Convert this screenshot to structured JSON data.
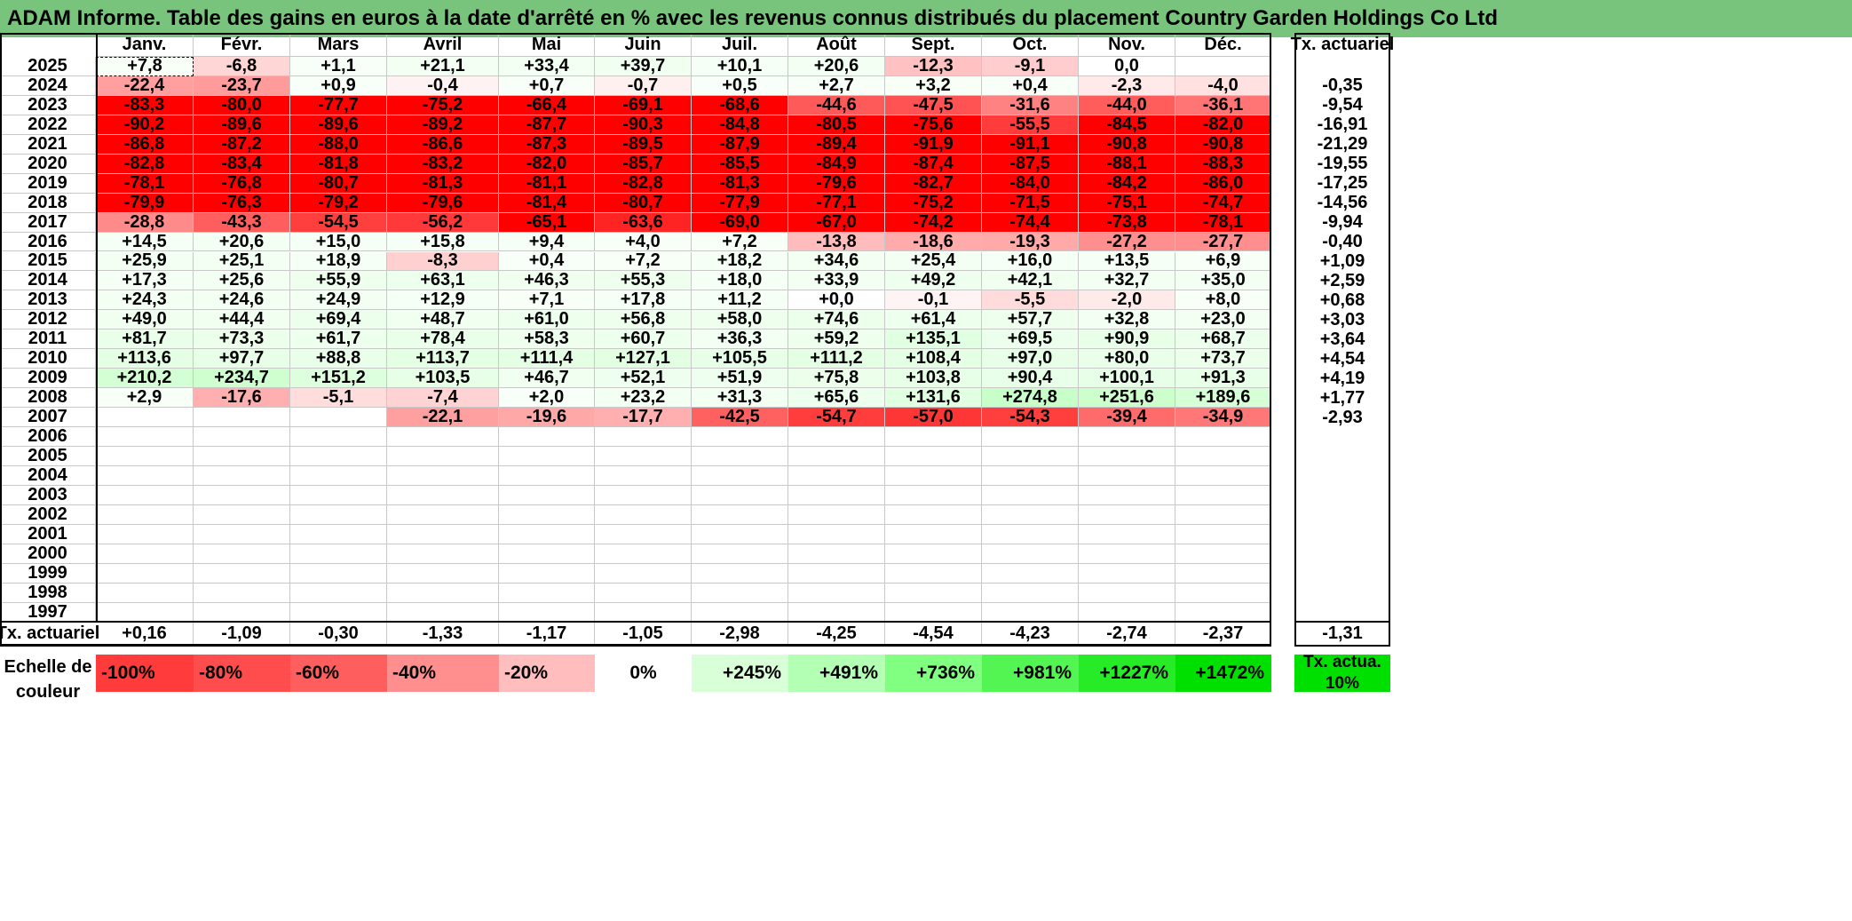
{
  "title": "ADAM Informe. Table des gains en euros à la date d'arrêté en % avec les revenus connus distribués du placement Country Garden Holdings Co Ltd",
  "months": [
    "Janv.",
    "Févr.",
    "Mars",
    "Avril",
    "Mai",
    "Juin",
    "Juil.",
    "Août",
    "Sept.",
    "Oct.",
    "Nov.",
    "Déc."
  ],
  "annual_header": "Tx. actuariel",
  "rows": [
    {
      "year": "2025",
      "values": [
        "+7,8",
        "-6,8",
        "+1,1",
        "+21,1",
        "+33,4",
        "+39,7",
        "+10,1",
        "+20,6",
        "-12,3",
        "-9,1",
        "0,0",
        ""
      ],
      "annual": ""
    },
    {
      "year": "2024",
      "values": [
        "-22,4",
        "-23,7",
        "+0,9",
        "-0,4",
        "+0,7",
        "-0,7",
        "+0,5",
        "+2,7",
        "+3,2",
        "+0,4",
        "-2,3",
        "-4,0"
      ],
      "annual": "-0,35"
    },
    {
      "year": "2023",
      "values": [
        "-83,3",
        "-80,0",
        "-77,7",
        "-75,2",
        "-66,4",
        "-69,1",
        "-68,6",
        "-44,6",
        "-47,5",
        "-31,6",
        "-44,0",
        "-36,1"
      ],
      "annual": "-9,54"
    },
    {
      "year": "2022",
      "values": [
        "-90,2",
        "-89,6",
        "-89,6",
        "-89,2",
        "-87,7",
        "-90,3",
        "-84,8",
        "-80,5",
        "-75,6",
        "-55,5",
        "-84,5",
        "-82,0"
      ],
      "annual": "-16,91"
    },
    {
      "year": "2021",
      "values": [
        "-86,8",
        "-87,2",
        "-88,0",
        "-86,6",
        "-87,3",
        "-89,5",
        "-87,9",
        "-89,4",
        "-91,9",
        "-91,1",
        "-90,8",
        "-90,8"
      ],
      "annual": "-21,29"
    },
    {
      "year": "2020",
      "values": [
        "-82,8",
        "-83,4",
        "-81,8",
        "-83,2",
        "-82,0",
        "-85,7",
        "-85,5",
        "-84,9",
        "-87,4",
        "-87,5",
        "-88,1",
        "-88,3"
      ],
      "annual": "-19,55"
    },
    {
      "year": "2019",
      "values": [
        "-78,1",
        "-76,8",
        "-80,7",
        "-81,3",
        "-81,1",
        "-82,8",
        "-81,3",
        "-79,6",
        "-82,7",
        "-84,0",
        "-84,2",
        "-86,0"
      ],
      "annual": "-17,25"
    },
    {
      "year": "2018",
      "values": [
        "-79,9",
        "-76,3",
        "-79,2",
        "-79,6",
        "-81,4",
        "-80,7",
        "-77,9",
        "-77,1",
        "-75,2",
        "-71,5",
        "-75,1",
        "-74,7"
      ],
      "annual": "-14,56"
    },
    {
      "year": "2017",
      "values": [
        "-28,8",
        "-43,3",
        "-54,5",
        "-56,2",
        "-65,1",
        "-63,6",
        "-69,0",
        "-67,0",
        "-74,2",
        "-74,4",
        "-73,8",
        "-78,1"
      ],
      "annual": "-9,94"
    },
    {
      "year": "2016",
      "values": [
        "+14,5",
        "+20,6",
        "+15,0",
        "+15,8",
        "+9,4",
        "+4,0",
        "+7,2",
        "-13,8",
        "-18,6",
        "-19,3",
        "-27,2",
        "-27,7"
      ],
      "annual": "-0,40"
    },
    {
      "year": "2015",
      "values": [
        "+25,9",
        "+25,1",
        "+18,9",
        "-8,3",
        "+0,4",
        "+7,2",
        "+18,2",
        "+34,6",
        "+25,4",
        "+16,0",
        "+13,5",
        "+6,9"
      ],
      "annual": "+1,09"
    },
    {
      "year": "2014",
      "values": [
        "+17,3",
        "+25,6",
        "+55,9",
        "+63,1",
        "+46,3",
        "+55,3",
        "+18,0",
        "+33,9",
        "+49,2",
        "+42,1",
        "+32,7",
        "+35,0"
      ],
      "annual": "+2,59"
    },
    {
      "year": "2013",
      "values": [
        "+24,3",
        "+24,6",
        "+24,9",
        "+12,9",
        "+7,1",
        "+17,8",
        "+11,2",
        "+0,0",
        "-0,1",
        "-5,5",
        "-2,0",
        "+8,0"
      ],
      "annual": "+0,68"
    },
    {
      "year": "2012",
      "values": [
        "+49,0",
        "+44,4",
        "+69,4",
        "+48,7",
        "+61,0",
        "+56,8",
        "+58,0",
        "+74,6",
        "+61,4",
        "+57,7",
        "+32,8",
        "+23,0"
      ],
      "annual": "+3,03"
    },
    {
      "year": "2011",
      "values": [
        "+81,7",
        "+73,3",
        "+61,7",
        "+78,4",
        "+58,3",
        "+60,7",
        "+36,3",
        "+59,2",
        "+135,1",
        "+69,5",
        "+90,9",
        "+68,7"
      ],
      "annual": "+3,64"
    },
    {
      "year": "2010",
      "values": [
        "+113,6",
        "+97,7",
        "+88,8",
        "+113,7",
        "+111,4",
        "+127,1",
        "+105,5",
        "+111,2",
        "+108,4",
        "+97,0",
        "+80,0",
        "+73,7"
      ],
      "annual": "+4,54"
    },
    {
      "year": "2009",
      "values": [
        "+210,2",
        "+234,7",
        "+151,2",
        "+103,5",
        "+46,7",
        "+52,1",
        "+51,9",
        "+75,8",
        "+103,8",
        "+90,4",
        "+100,1",
        "+91,3"
      ],
      "annual": "+4,19"
    },
    {
      "year": "2008",
      "values": [
        "+2,9",
        "-17,6",
        "-5,1",
        "-7,4",
        "+2,0",
        "+23,2",
        "+31,3",
        "+65,6",
        "+131,6",
        "+274,8",
        "+251,6",
        "+189,6"
      ],
      "annual": "+1,77"
    },
    {
      "year": "2007",
      "values": [
        "",
        "",
        "",
        "-22,1",
        "-19,6",
        "-17,7",
        "-42,5",
        "-54,7",
        "-57,0",
        "-54,3",
        "-39,4",
        "-34,9"
      ],
      "annual": "-2,93"
    },
    {
      "year": "2006",
      "values": [
        "",
        "",
        "",
        "",
        "",
        "",
        "",
        "",
        "",
        "",
        "",
        ""
      ],
      "annual": ""
    },
    {
      "year": "2005",
      "values": [
        "",
        "",
        "",
        "",
        "",
        "",
        "",
        "",
        "",
        "",
        "",
        ""
      ],
      "annual": ""
    },
    {
      "year": "2004",
      "values": [
        "",
        "",
        "",
        "",
        "",
        "",
        "",
        "",
        "",
        "",
        "",
        ""
      ],
      "annual": ""
    },
    {
      "year": "2003",
      "values": [
        "",
        "",
        "",
        "",
        "",
        "",
        "",
        "",
        "",
        "",
        "",
        ""
      ],
      "annual": ""
    },
    {
      "year": "2002",
      "values": [
        "",
        "",
        "",
        "",
        "",
        "",
        "",
        "",
        "",
        "",
        "",
        ""
      ],
      "annual": ""
    },
    {
      "year": "2001",
      "values": [
        "",
        "",
        "",
        "",
        "",
        "",
        "",
        "",
        "",
        "",
        "",
        ""
      ],
      "annual": ""
    },
    {
      "year": "2000",
      "values": [
        "",
        "",
        "",
        "",
        "",
        "",
        "",
        "",
        "",
        "",
        "",
        ""
      ],
      "annual": ""
    },
    {
      "year": "1999",
      "values": [
        "",
        "",
        "",
        "",
        "",
        "",
        "",
        "",
        "",
        "",
        "",
        ""
      ],
      "annual": ""
    },
    {
      "year": "1998",
      "values": [
        "",
        "",
        "",
        "",
        "",
        "",
        "",
        "",
        "",
        "",
        "",
        ""
      ],
      "annual": ""
    },
    {
      "year": "1997",
      "values": [
        "",
        "",
        "",
        "",
        "",
        "",
        "",
        "",
        "",
        "",
        "",
        ""
      ],
      "annual": ""
    }
  ],
  "summary": {
    "label": "Tx. actuariel",
    "values": [
      "+0,16",
      "-1,09",
      "-0,30",
      "-1,33",
      "-1,17",
      "-1,05",
      "-2,98",
      "-4,25",
      "-4,54",
      "-4,23",
      "-2,74",
      "-2,37"
    ],
    "annual": "-1,31"
  },
  "legend": {
    "label": "Echelle de couleur",
    "items": [
      {
        "text": "-100%",
        "color": "#ff3b3b"
      },
      {
        "text": "-80%",
        "color": "#ff4d4d"
      },
      {
        "text": "-60%",
        "color": "#ff5e5e"
      },
      {
        "text": "-40%",
        "color": "#ff8f8f"
      },
      {
        "text": "-20%",
        "color": "#ffbdbd"
      },
      {
        "text": "0%",
        "color": "#ffffff"
      },
      {
        "text": "+245%",
        "color": "#d9ffd9"
      },
      {
        "text": "+491%",
        "color": "#b3ffb3"
      },
      {
        "text": "+736%",
        "color": "#80ff80"
      },
      {
        "text": "+981%",
        "color": "#52f552"
      },
      {
        "text": "+1227%",
        "color": "#26eb26"
      },
      {
        "text": "+1472%",
        "color": "#00e000"
      }
    ],
    "side_text": "Tx. actua. 10%",
    "side_color": "#00e000"
  }
}
